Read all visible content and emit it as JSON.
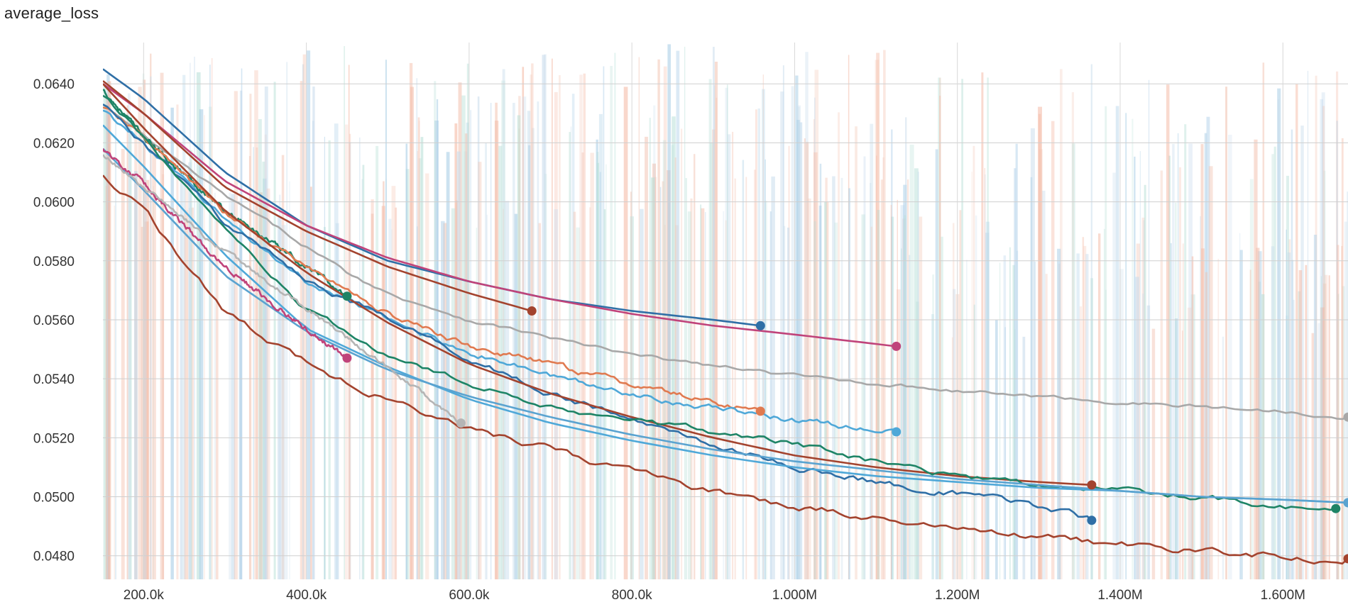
{
  "chart_data": {
    "type": "line",
    "title": "average_loss",
    "xlabel": "",
    "ylabel": "",
    "xlim": [
      150000,
      1680000
    ],
    "ylim": [
      0.0472,
      0.0654
    ],
    "grid": true,
    "legend": "none",
    "x_ticks": [
      {
        "value": 200000,
        "label": "200.0k"
      },
      {
        "value": 400000,
        "label": "400.0k"
      },
      {
        "value": 600000,
        "label": "600.0k"
      },
      {
        "value": 800000,
        "label": "800.0k"
      },
      {
        "value": 1000000,
        "label": "1.000M"
      },
      {
        "value": 1200000,
        "label": "1.200M"
      },
      {
        "value": 1400000,
        "label": "1.400M"
      },
      {
        "value": 1600000,
        "label": "1.600M"
      }
    ],
    "y_ticks": [
      {
        "value": 0.064,
        "label": "0.0640"
      },
      {
        "value": 0.062,
        "label": "0.0620"
      },
      {
        "value": 0.06,
        "label": "0.0600"
      },
      {
        "value": 0.058,
        "label": "0.0580"
      },
      {
        "value": 0.056,
        "label": "0.0560"
      },
      {
        "value": 0.054,
        "label": "0.0540"
      },
      {
        "value": 0.052,
        "label": "0.0520"
      },
      {
        "value": 0.05,
        "label": "0.0500"
      },
      {
        "value": 0.048,
        "label": "0.0480"
      }
    ],
    "series": [
      {
        "color": "#2f6fa6",
        "noise": 0,
        "points": [
          [
            150000,
            0.0645
          ],
          [
            200000,
            0.0635
          ],
          [
            300000,
            0.061
          ],
          [
            400000,
            0.0592
          ],
          [
            500000,
            0.058
          ],
          [
            600000,
            0.0573
          ],
          [
            700000,
            0.0567
          ],
          [
            800000,
            0.0563
          ],
          [
            900000,
            0.056
          ],
          [
            958000,
            0.0558
          ]
        ]
      },
      {
        "color": "#c0437a",
        "noise": 0,
        "points": [
          [
            150000,
            0.064
          ],
          [
            200000,
            0.063
          ],
          [
            300000,
            0.0607
          ],
          [
            400000,
            0.0592
          ],
          [
            500000,
            0.0581
          ],
          [
            600000,
            0.0573
          ],
          [
            700000,
            0.0567
          ],
          [
            800000,
            0.0562
          ],
          [
            900000,
            0.0558
          ],
          [
            1000000,
            0.0555
          ],
          [
            1125000,
            0.0551
          ]
        ]
      },
      {
        "color": "#a3432e",
        "noise": 0,
        "points": [
          [
            150000,
            0.0641
          ],
          [
            200000,
            0.063
          ],
          [
            300000,
            0.0605
          ],
          [
            400000,
            0.059
          ],
          [
            500000,
            0.0578
          ],
          [
            600000,
            0.0569
          ],
          [
            677000,
            0.0563
          ]
        ]
      },
      {
        "color": "#a8a8a8",
        "noise": 6e-05,
        "points": [
          [
            150000,
            0.0633
          ],
          [
            200000,
            0.0622
          ],
          [
            300000,
            0.0602
          ],
          [
            400000,
            0.0585
          ],
          [
            450000,
            0.0576
          ],
          [
            500000,
            0.0569
          ],
          [
            600000,
            0.056
          ],
          [
            800000,
            0.0548
          ],
          [
            1000000,
            0.0541
          ],
          [
            1200000,
            0.0536
          ],
          [
            1400000,
            0.0532
          ],
          [
            1600000,
            0.0529
          ],
          [
            1680000,
            0.0527
          ]
        ]
      },
      {
        "color": "#1e8466",
        "noise": 8e-05,
        "points": [
          [
            150000,
            0.0638
          ],
          [
            200000,
            0.0622
          ],
          [
            300000,
            0.0597
          ],
          [
            400000,
            0.0578
          ],
          [
            450000,
            0.0568
          ]
        ]
      },
      {
        "color": "#e07a50",
        "noise": 9e-05,
        "points": [
          [
            150000,
            0.0632
          ],
          [
            200000,
            0.0622
          ],
          [
            300000,
            0.0596
          ],
          [
            400000,
            0.0578
          ],
          [
            500000,
            0.0562
          ],
          [
            600000,
            0.0551
          ],
          [
            700000,
            0.0545
          ],
          [
            800000,
            0.0538
          ],
          [
            900000,
            0.0532
          ],
          [
            958000,
            0.0529
          ]
        ]
      },
      {
        "color": "#4fa8d8",
        "noise": 9e-05,
        "points": [
          [
            150000,
            0.0631
          ],
          [
            200000,
            0.062
          ],
          [
            300000,
            0.0594
          ],
          [
            400000,
            0.0573
          ],
          [
            500000,
            0.056
          ],
          [
            600000,
            0.0549
          ],
          [
            700000,
            0.0541
          ],
          [
            800000,
            0.0535
          ],
          [
            900000,
            0.053
          ],
          [
            1000000,
            0.0526
          ],
          [
            1125000,
            0.0522
          ]
        ]
      },
      {
        "color": "#2f6fa6",
        "noise": 0.0001,
        "points": [
          [
            150000,
            0.0633
          ],
          [
            200000,
            0.062
          ],
          [
            300000,
            0.0593
          ],
          [
            400000,
            0.0574
          ],
          [
            500000,
            0.056
          ],
          [
            600000,
            0.0547
          ],
          [
            700000,
            0.0535
          ],
          [
            800000,
            0.0526
          ],
          [
            900000,
            0.0518
          ],
          [
            1000000,
            0.051
          ],
          [
            1100000,
            0.0505
          ],
          [
            1200000,
            0.0501
          ],
          [
            1300000,
            0.0497
          ],
          [
            1365000,
            0.0492
          ]
        ]
      },
      {
        "color": "#a3432e",
        "noise": 0,
        "points": [
          [
            150000,
            0.064
          ],
          [
            200000,
            0.0625
          ],
          [
            300000,
            0.0597
          ],
          [
            400000,
            0.0576
          ],
          [
            500000,
            0.0559
          ],
          [
            600000,
            0.0545
          ],
          [
            700000,
            0.0535
          ],
          [
            800000,
            0.0527
          ],
          [
            900000,
            0.052
          ],
          [
            1000000,
            0.0514
          ],
          [
            1100000,
            0.051
          ],
          [
            1200000,
            0.0507
          ],
          [
            1300000,
            0.0505
          ],
          [
            1365000,
            0.0504
          ]
        ]
      },
      {
        "color": "#1e8466",
        "noise": 0.0001,
        "points": [
          [
            150000,
            0.0636
          ],
          [
            200000,
            0.0622
          ],
          [
            300000,
            0.059
          ],
          [
            400000,
            0.0563
          ],
          [
            500000,
            0.0548
          ],
          [
            600000,
            0.0538
          ],
          [
            700000,
            0.0531
          ],
          [
            800000,
            0.0526
          ],
          [
            900000,
            0.0522
          ],
          [
            1000000,
            0.0518
          ],
          [
            1100000,
            0.0512
          ],
          [
            1200000,
            0.0507
          ],
          [
            1300000,
            0.0504
          ],
          [
            1400000,
            0.0502
          ],
          [
            1500000,
            0.05
          ],
          [
            1600000,
            0.0497
          ],
          [
            1665000,
            0.0496
          ]
        ]
      },
      {
        "color": "#4fa8d8",
        "noise": 0,
        "points": [
          [
            150000,
            0.0626
          ],
          [
            200000,
            0.0612
          ],
          [
            300000,
            0.0582
          ],
          [
            400000,
            0.0557
          ],
          [
            500000,
            0.0544
          ],
          [
            600000,
            0.0533
          ],
          [
            700000,
            0.0525
          ],
          [
            800000,
            0.0519
          ],
          [
            900000,
            0.0514
          ],
          [
            1000000,
            0.051
          ],
          [
            1100000,
            0.0507
          ],
          [
            1200000,
            0.0505
          ],
          [
            1300000,
            0.0503
          ],
          [
            1400000,
            0.0502
          ],
          [
            1500000,
            0.05
          ],
          [
            1600000,
            0.0499
          ],
          [
            1680000,
            0.0498
          ]
        ]
      },
      {
        "color": "#5aa3d0",
        "noise": 0,
        "points": [
          [
            150000,
            0.0618
          ],
          [
            200000,
            0.0604
          ],
          [
            300000,
            0.0575
          ],
          [
            400000,
            0.0556
          ],
          [
            500000,
            0.0543
          ],
          [
            600000,
            0.0534
          ],
          [
            700000,
            0.0527
          ],
          [
            800000,
            0.0521
          ],
          [
            900000,
            0.0516
          ],
          [
            1000000,
            0.0512
          ],
          [
            1100000,
            0.0509
          ],
          [
            1200000,
            0.0506
          ],
          [
            1300000,
            0.0504
          ],
          [
            1400000,
            0.0502
          ],
          [
            1500000,
            0.05
          ],
          [
            1600000,
            0.0499
          ],
          [
            1680000,
            0.0498
          ]
        ]
      },
      {
        "color": "#c0437a",
        "noise": 8e-05,
        "points": [
          [
            150000,
            0.0618
          ],
          [
            200000,
            0.0606
          ],
          [
            300000,
            0.0578
          ],
          [
            400000,
            0.0557
          ],
          [
            450000,
            0.0547
          ]
        ]
      },
      {
        "color": "#b5b5b5",
        "noise": 7e-05,
        "points": [
          [
            150000,
            0.0616
          ],
          [
            200000,
            0.0605
          ],
          [
            300000,
            0.0583
          ],
          [
            400000,
            0.0564
          ],
          [
            500000,
            0.0544
          ],
          [
            590000,
            0.0525
          ]
        ]
      },
      {
        "color": "#a3432e",
        "noise": 0.00012,
        "points": [
          [
            150000,
            0.0609
          ],
          [
            200000,
            0.0597
          ],
          [
            300000,
            0.0563
          ],
          [
            400000,
            0.0545
          ],
          [
            500000,
            0.0533
          ],
          [
            600000,
            0.0523
          ],
          [
            700000,
            0.0516
          ],
          [
            800000,
            0.0509
          ],
          [
            900000,
            0.0502
          ],
          [
            1000000,
            0.0497
          ],
          [
            1100000,
            0.0493
          ],
          [
            1200000,
            0.049
          ],
          [
            1300000,
            0.0487
          ],
          [
            1400000,
            0.0484
          ],
          [
            1500000,
            0.0482
          ],
          [
            1600000,
            0.048
          ],
          [
            1680000,
            0.0479
          ]
        ]
      }
    ]
  }
}
